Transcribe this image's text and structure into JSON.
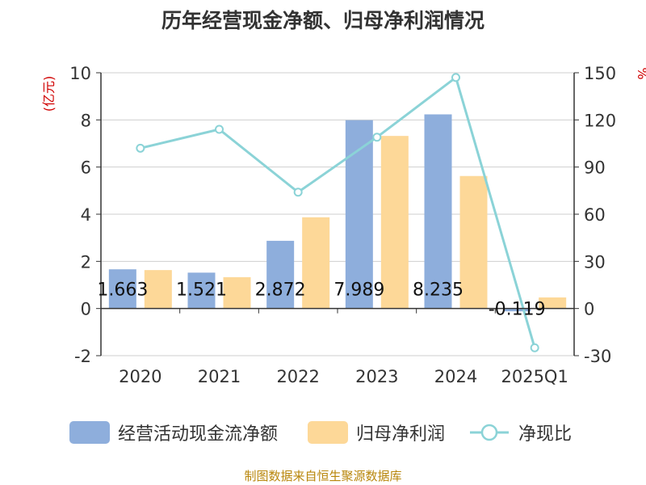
{
  "chart_data": {
    "type": "bar",
    "title": "历年经营现金净额、归母净利润情况",
    "categories": [
      "2020",
      "2021",
      "2022",
      "2023",
      "2024",
      "2025Q1"
    ],
    "y_left": {
      "label": "(亿元)",
      "ylim": [
        -2,
        10
      ],
      "ticks": [
        "-2",
        "0",
        "2",
        "4",
        "6",
        "8",
        "10"
      ]
    },
    "y_right": {
      "label": "%",
      "ylim": [
        -30,
        150
      ],
      "ticks": [
        "-30",
        "0",
        "30",
        "60",
        "90",
        "120",
        "150"
      ]
    },
    "series": [
      {
        "name": "经营活动现金流净额",
        "type": "bar",
        "axis": "left",
        "color": "#8eaedc",
        "values": [
          1.663,
          1.521,
          2.872,
          7.989,
          8.235,
          -0.119
        ],
        "labels": [
          "1.663",
          "1.521",
          "2.872",
          "7.989",
          "8.235",
          "-0.119"
        ]
      },
      {
        "name": "归母净利润",
        "type": "bar",
        "axis": "left",
        "color": "#fdd898",
        "values": [
          1.63,
          1.33,
          3.87,
          7.32,
          5.62,
          0.47
        ]
      },
      {
        "name": "净现比",
        "type": "line",
        "axis": "right",
        "color": "#8bd3d7",
        "values": [
          102,
          114,
          74,
          109,
          147,
          -25
        ]
      }
    ],
    "grid": true,
    "legend_position": "bottom"
  },
  "source": "制图数据来自恒生聚源数据库"
}
